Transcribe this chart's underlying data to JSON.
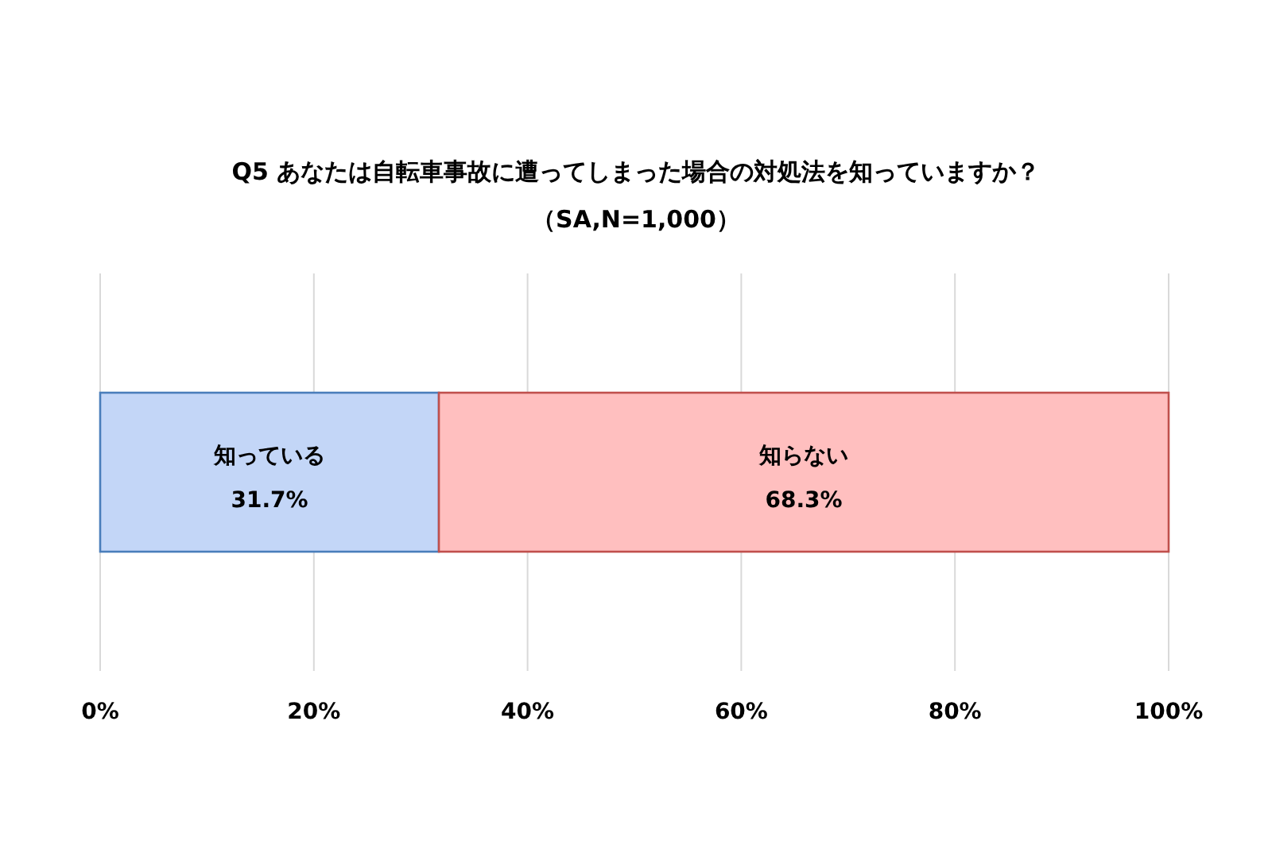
{
  "chart_data": {
    "type": "bar",
    "orientation": "horizontal",
    "stacked": true,
    "title": "Q5 あなたは自転車事故に遭ってしまった場合の対処法を知っていますか？",
    "subtitle": "（SA,N=1,000）",
    "categories": [
      null
    ],
    "series": [
      {
        "name": "知っている",
        "color": "#c3d6f7",
        "values": [
          31.7
        ],
        "value_labels": [
          "31.7%"
        ]
      },
      {
        "name": "知らない",
        "color": "#ffbfbf",
        "values": [
          68.3
        ],
        "value_labels": [
          "68.3%"
        ]
      }
    ],
    "xlim": [
      0,
      100
    ],
    "xticks": [
      {
        "value": 0,
        "label": "0%"
      },
      {
        "value": 20,
        "label": "20%"
      },
      {
        "value": 40,
        "label": "40%"
      },
      {
        "value": 60,
        "label": "60%"
      },
      {
        "value": 80,
        "label": "80%"
      },
      {
        "value": 100,
        "label": "100%"
      }
    ],
    "grid": "x"
  }
}
